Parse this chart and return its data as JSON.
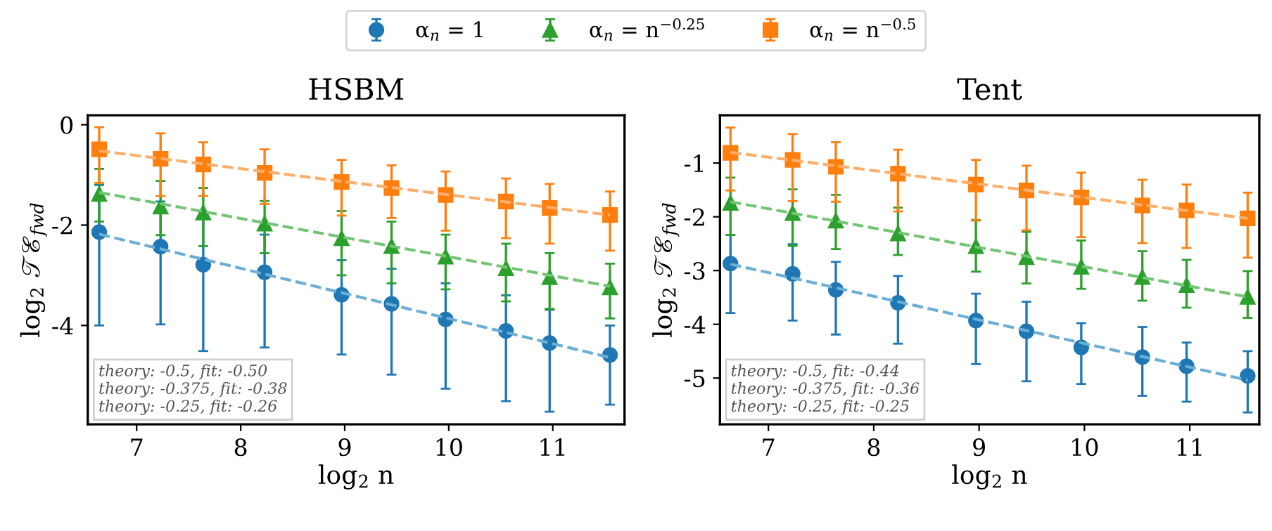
{
  "chart_data": [
    {
      "type": "scatter",
      "title": "HSBM",
      "xlabel": "log$_{2}$ n",
      "ylabel": "log$_{2}$ 𝒯ℰ$_{fwd}$",
      "xlim": [
        6.53,
        11.69
      ],
      "ylim": [
        -5.97,
        0.19
      ],
      "xticks": [
        7,
        8,
        9,
        10,
        11
      ],
      "yticks": [
        0,
        -2,
        -4
      ],
      "grid": false,
      "legend": "top",
      "annotations": [
        "theory: -0.5, fit: -0.50",
        "theory: -0.375, fit: -0.38",
        "theory: -0.25, fit: -0.26"
      ],
      "series": [
        {
          "name": "α$_{n}$ = 1",
          "color": "#1f77b4",
          "marker": "circle",
          "x": [
            6.64,
            7.23,
            7.64,
            8.23,
            8.97,
            9.45,
            9.97,
            10.55,
            10.97,
            11.55
          ],
          "values": [
            -2.14,
            -2.43,
            -2.79,
            -2.94,
            -3.39,
            -3.57,
            -3.88,
            -4.11,
            -4.35,
            -4.59
          ],
          "errors": [
            [
              -4.0,
              -1.2
            ],
            [
              -3.98,
              -1.53
            ],
            [
              -4.51,
              -1.77
            ],
            [
              -4.44,
              -2.19
            ],
            [
              -4.58,
              -2.7
            ],
            [
              -4.98,
              -2.87
            ],
            [
              -5.26,
              -3.16
            ],
            [
              -5.51,
              -3.4
            ],
            [
              -5.72,
              -3.69
            ],
            [
              -5.58,
              -4.0
            ]
          ]
        },
        {
          "name": "α$_{n}$ = n$^{−0.25}$",
          "color": "#2ca02c",
          "marker": "triangle",
          "x": [
            6.64,
            7.23,
            7.64,
            8.23,
            8.97,
            9.45,
            9.97,
            10.55,
            10.97,
            11.55
          ],
          "values": [
            -1.38,
            -1.63,
            -1.75,
            -1.97,
            -2.26,
            -2.42,
            -2.63,
            -2.86,
            -3.04,
            -3.24
          ],
          "errors": [
            [
              -1.93,
              -0.88
            ],
            [
              -2.2,
              -1.12
            ],
            [
              -2.42,
              -1.26
            ],
            [
              -2.56,
              -1.52
            ],
            [
              -3.0,
              -1.72
            ],
            [
              -3.16,
              -1.93
            ],
            [
              -3.28,
              -2.19
            ],
            [
              -3.52,
              -2.37
            ],
            [
              -3.67,
              -2.56
            ],
            [
              -3.86,
              -2.77
            ]
          ]
        },
        {
          "name": "α$_{n}$ = n$^{−0.5}$",
          "color": "#ff7f0e",
          "marker": "square",
          "x": [
            6.64,
            7.23,
            7.64,
            8.23,
            8.97,
            9.45,
            9.97,
            10.55,
            10.97,
            11.55
          ],
          "values": [
            -0.49,
            -0.68,
            -0.79,
            -0.96,
            -1.14,
            -1.26,
            -1.4,
            -1.53,
            -1.66,
            -1.8
          ],
          "errors": [
            [
              -1.16,
              -0.05
            ],
            [
              -1.42,
              -0.17
            ],
            [
              -1.42,
              -0.35
            ],
            [
              -1.58,
              -0.49
            ],
            [
              -1.81,
              -0.7
            ],
            [
              -1.86,
              -0.81
            ],
            [
              -2.11,
              -0.93
            ],
            [
              -2.26,
              -1.07
            ],
            [
              -2.37,
              -1.18
            ],
            [
              -2.51,
              -1.33
            ]
          ]
        },
        {
          "type": "line",
          "color": "#6baed6",
          "line_style": "dashed",
          "marker": "none",
          "x": [
            6.64,
            11.55
          ],
          "values": [
            -2.18,
            -4.64
          ]
        },
        {
          "type": "line",
          "color": "#74c476",
          "line_style": "dashed",
          "marker": "none",
          "x": [
            6.64,
            11.55
          ],
          "values": [
            -1.35,
            -3.22
          ]
        },
        {
          "type": "line",
          "color": "#fdae6b",
          "line_style": "dashed",
          "marker": "none",
          "x": [
            6.64,
            11.55
          ],
          "values": [
            -0.52,
            -1.8
          ]
        }
      ]
    },
    {
      "type": "scatter",
      "title": "Tent",
      "xlabel": "log$_{2}$ n",
      "ylabel": "log$_{2}$ 𝒯ℰ$_{fwd}$",
      "xlim": [
        6.54,
        11.66
      ],
      "ylim": [
        -5.86,
        -0.11
      ],
      "xticks": [
        7,
        8,
        9,
        10,
        11
      ],
      "yticks": [
        -1,
        -2,
        -3,
        -4,
        -5
      ],
      "grid": false,
      "annotations": [
        "theory: -0.5, fit: -0.44",
        "theory: -0.375, fit: -0.36",
        "theory: -0.25, fit: -0.25"
      ],
      "series": [
        {
          "color": "#1f77b4",
          "marker": "circle",
          "x": [
            6.64,
            7.23,
            7.64,
            8.23,
            8.97,
            9.45,
            9.97,
            10.55,
            10.97,
            11.55
          ],
          "values": [
            -2.87,
            -3.06,
            -3.36,
            -3.6,
            -3.93,
            -4.13,
            -4.43,
            -4.61,
            -4.78,
            -4.96
          ],
          "errors": [
            [
              -3.79,
              -2.34
            ],
            [
              -3.93,
              -2.51
            ],
            [
              -4.19,
              -2.84
            ],
            [
              -4.36,
              -3.1
            ],
            [
              -4.74,
              -3.43
            ],
            [
              -5.06,
              -3.58
            ],
            [
              -5.11,
              -3.98
            ],
            [
              -5.33,
              -4.05
            ],
            [
              -5.44,
              -4.34
            ],
            [
              -5.64,
              -4.5
            ]
          ]
        },
        {
          "color": "#2ca02c",
          "marker": "triangle",
          "x": [
            6.64,
            7.23,
            7.64,
            8.23,
            8.97,
            9.45,
            9.97,
            10.55,
            10.97,
            11.55
          ],
          "values": [
            -1.74,
            -1.93,
            -2.07,
            -2.31,
            -2.55,
            -2.75,
            -2.93,
            -3.12,
            -3.27,
            -3.49
          ],
          "errors": [
            [
              -2.34,
              -1.27
            ],
            [
              -2.54,
              -1.49
            ],
            [
              -2.6,
              -1.59
            ],
            [
              -2.71,
              -1.83
            ],
            [
              -3.02,
              -2.06
            ],
            [
              -3.24,
              -2.28
            ],
            [
              -3.34,
              -2.44
            ],
            [
              -3.56,
              -2.64
            ],
            [
              -3.69,
              -2.8
            ],
            [
              -3.88,
              -3.01
            ]
          ]
        },
        {
          "color": "#ff7f0e",
          "marker": "square",
          "x": [
            6.64,
            7.23,
            7.64,
            8.23,
            8.97,
            9.45,
            9.97,
            10.55,
            10.97,
            11.55
          ],
          "values": [
            -0.81,
            -0.94,
            -1.07,
            -1.2,
            -1.4,
            -1.51,
            -1.64,
            -1.79,
            -1.88,
            -2.03
          ],
          "errors": [
            [
              -1.51,
              -0.34
            ],
            [
              -1.71,
              -0.46
            ],
            [
              -1.72,
              -0.61
            ],
            [
              -1.9,
              -0.75
            ],
            [
              -2.07,
              -0.94
            ],
            [
              -2.25,
              -1.05
            ],
            [
              -2.38,
              -1.18
            ],
            [
              -2.49,
              -1.31
            ],
            [
              -2.58,
              -1.4
            ],
            [
              -2.76,
              -1.55
            ]
          ]
        },
        {
          "type": "line",
          "color": "#6baed6",
          "line_style": "dashed",
          "marker": "none",
          "x": [
            6.64,
            11.55
          ],
          "values": [
            -2.88,
            -5.04
          ]
        },
        {
          "type": "line",
          "color": "#74c476",
          "line_style": "dashed",
          "marker": "none",
          "x": [
            6.64,
            11.55
          ],
          "values": [
            -1.72,
            -3.49
          ]
        },
        {
          "type": "line",
          "color": "#fdae6b",
          "line_style": "dashed",
          "marker": "none",
          "x": [
            6.64,
            11.55
          ],
          "values": [
            -0.8,
            -2.03
          ]
        }
      ]
    }
  ]
}
